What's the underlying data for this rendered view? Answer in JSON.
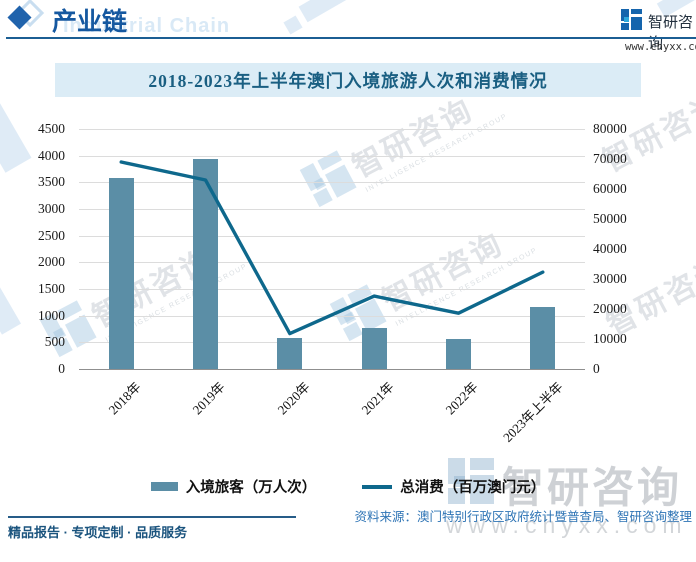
{
  "header": {
    "section_title": "产业链",
    "section_watermark": "Industrial Chain",
    "brand_name": "智研咨询",
    "brand_site": "www.chyxx.com"
  },
  "chart_data": {
    "type": "bar+line",
    "title": "2018-2023年上半年澳门入境旅游人次和消费情况",
    "categories": [
      "2018年",
      "2019年",
      "2020年",
      "2021年",
      "2022年",
      "2023年上半年"
    ],
    "series": [
      {
        "name": "入境旅客（万人次）",
        "type": "bar",
        "axis": "left",
        "color": "#5b8ea6",
        "values": [
          3580,
          3940,
          590,
          770,
          570,
          1164
        ]
      },
      {
        "name": "总消费（百万澳门元）",
        "type": "line",
        "axis": "right",
        "color": "#0e688c",
        "values": [
          69000,
          63000,
          11800,
          24300,
          18600,
          32300
        ]
      }
    ],
    "left_axis": {
      "min": 0,
      "max": 4500,
      "step": 500,
      "ticks": [
        0,
        500,
        1000,
        1500,
        2000,
        2500,
        3000,
        3500,
        4000,
        4500
      ]
    },
    "right_axis": {
      "min": 0,
      "max": 80000,
      "step": 10000,
      "ticks": [
        0,
        10000,
        20000,
        30000,
        40000,
        50000,
        60000,
        70000,
        80000
      ]
    },
    "grid": true,
    "legend_position": "bottom"
  },
  "footer": {
    "tagline": "精品报告 · 专项定制 · 品质服务",
    "source": "资料来源：澳门特别行政区政府统计暨普查局、智研咨询整理"
  },
  "watermark": {
    "cn": "智研咨询",
    "en": "INTELLIGENCE RESEARCH GROUP",
    "site": "www.chyxx.com"
  },
  "colors": {
    "bar": "#5b8ea6",
    "line": "#0e688c",
    "accent_blue": "#1b5e93",
    "banner_bg": "#dbecf6",
    "title_text": "#1a5f82",
    "source_text": "#2e74b5"
  }
}
